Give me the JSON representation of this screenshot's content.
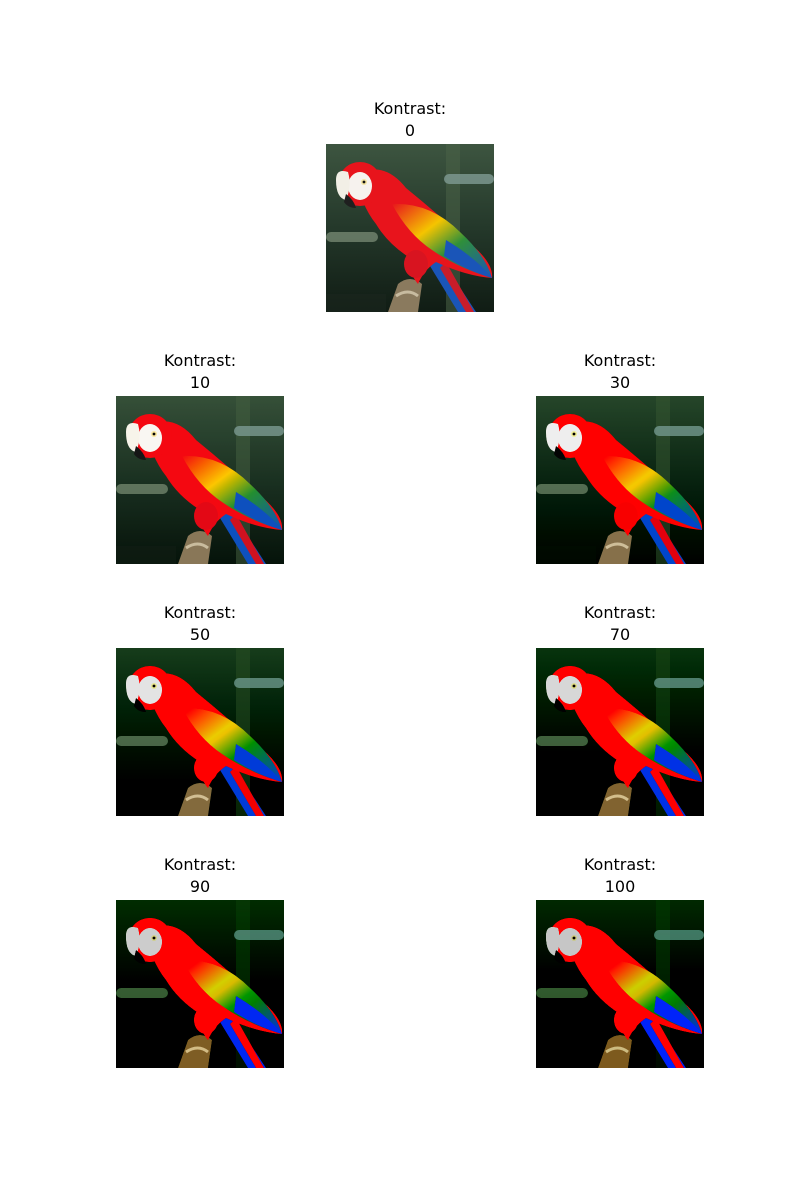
{
  "panels": [
    {
      "label": "Kontrast:",
      "value": "0",
      "contrast": 0
    },
    {
      "label": "Kontrast:",
      "value": "10",
      "contrast": 10
    },
    {
      "label": "Kontrast:",
      "value": "30",
      "contrast": 30
    },
    {
      "label": "Kontrast:",
      "value": "50",
      "contrast": 50
    },
    {
      "label": "Kontrast:",
      "value": "70",
      "contrast": 70
    },
    {
      "label": "Kontrast:",
      "value": "90",
      "contrast": 90
    },
    {
      "label": "Kontrast:",
      "value": "100",
      "contrast": 100
    }
  ],
  "colors": {
    "background": "#ffffff",
    "parrot_red": "#e8141c",
    "parrot_yellow": "#f5c400",
    "parrot_blue": "#1a55b8",
    "parrot_green": "#2f8f3a",
    "beak_white": "#f2efe6",
    "background_foliage": "#2e4a35"
  }
}
